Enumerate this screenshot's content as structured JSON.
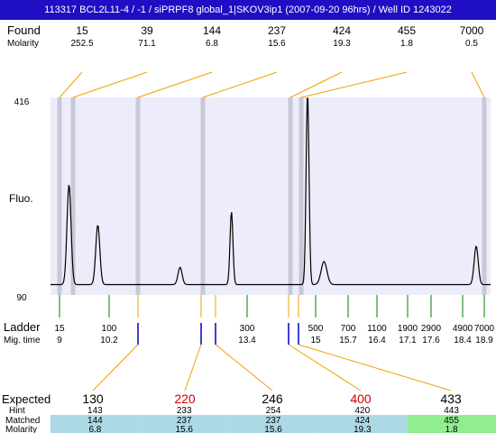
{
  "title": "113317  BCL2L11-4 / -1 / siPRPF8 global_1|SKOV3ip1 (2007-09-20 96hrs) / Well ID 1243022",
  "labels": {
    "found": "Found",
    "molarity": "Molarity",
    "fluo": "Fluo.",
    "ladder": "Ladder",
    "mig_time": "Mig. time",
    "expected": "Expected",
    "hint": "Hint",
    "matched": "Matched",
    "molarity_bottom": "Molarity"
  },
  "colors": {
    "title_bg": "#1f0ec4",
    "plot_bg": "#ececfa",
    "peak_band": "#c8c8d6",
    "found_line": "#f0a000",
    "ladder_tick": "#008000",
    "mig_mark": "#0000c8",
    "expected_normal": "#000000",
    "expected_highlight": "#d00000",
    "matched_bg": "#add8e6",
    "matched_bg_last": "#90ee90"
  },
  "chart_data": {
    "type": "line",
    "y_axis": {
      "top_label": "416",
      "bottom_label": "90",
      "label": "Fluo."
    },
    "found": [
      {
        "size": "15",
        "molarity": "252.5"
      },
      {
        "size": "39",
        "molarity": "71.1"
      },
      {
        "size": "144",
        "molarity": "6.8"
      },
      {
        "size": "237",
        "molarity": "15.6"
      },
      {
        "size": "424",
        "molarity": "19.3"
      },
      {
        "size": "455",
        "molarity": "1.8"
      },
      {
        "size": "7000",
        "molarity": "0.5"
      }
    ],
    "ladder": [
      {
        "size": "15",
        "mig_time": "9"
      },
      {
        "size": "100",
        "mig_time": "10.2"
      },
      {
        "size": "300",
        "mig_time": "13.4"
      },
      {
        "size": "500",
        "mig_time": "15"
      },
      {
        "size": "700",
        "mig_time": "15.7"
      },
      {
        "size": "1100",
        "mig_time": "16.4"
      },
      {
        "size": "1900",
        "mig_time": "17.1"
      },
      {
        "size": "2900",
        "mig_time": "17.6"
      },
      {
        "size": "4900",
        "mig_time": "18.4"
      },
      {
        "size": "7000",
        "mig_time": "18.9"
      }
    ],
    "expected": [
      {
        "expected": "130",
        "hint": "143",
        "matched": "144",
        "molarity": "6.8",
        "highlight": false
      },
      {
        "expected": "220",
        "hint": "233",
        "matched": "237",
        "molarity": "15.6",
        "highlight": true
      },
      {
        "expected": "246",
        "hint": "254",
        "matched": "237",
        "molarity": "15.6",
        "highlight": false
      },
      {
        "expected": "400",
        "hint": "420",
        "matched": "424",
        "molarity": "19.3",
        "highlight": true
      },
      {
        "expected": "433",
        "hint": "443",
        "matched": "455",
        "molarity": "1.8",
        "highlight": false
      }
    ],
    "trace": {
      "baseline": 0.04,
      "peaks": [
        {
          "mig_time": 9.05,
          "height": 0.52,
          "width": 0.07
        },
        {
          "mig_time": 9.75,
          "height": 0.31,
          "width": 0.07
        },
        {
          "mig_time": 11.75,
          "height": 0.09,
          "width": 0.07
        },
        {
          "mig_time": 13.0,
          "height": 0.38,
          "width": 0.05
        },
        {
          "mig_time": 14.85,
          "height": 1.0,
          "width": 0.05
        },
        {
          "mig_time": 15.25,
          "height": 0.12,
          "width": 0.1
        },
        {
          "mig_time": 18.95,
          "height": 0.2,
          "width": 0.07
        }
      ]
    }
  }
}
